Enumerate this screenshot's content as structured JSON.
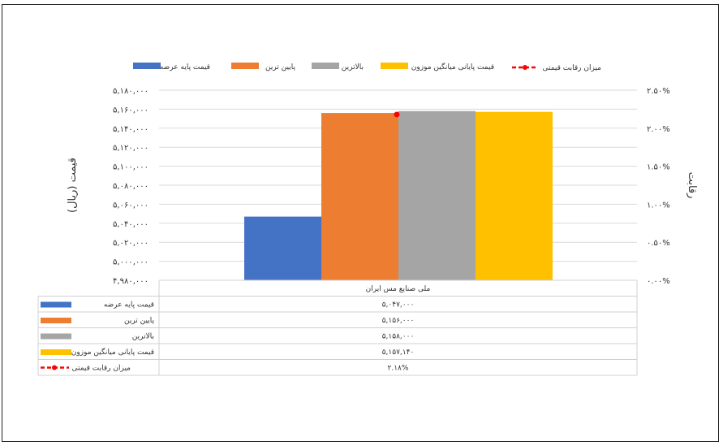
{
  "chart_data": {
    "type": "bar",
    "category": "ملی صنایع مس ایران",
    "series": [
      {
        "name": "قیمت پایه عرضه",
        "value": 5047000,
        "label": "۵,۰۴۷,۰۰۰",
        "color": "#4472C4"
      },
      {
        "name": "پایین ترین",
        "value": 5156000,
        "label": "۵,۱۵۶,۰۰۰",
        "color": "#ED7D31"
      },
      {
        "name": "بالاترین",
        "value": 5158000,
        "label": "۵,۱۵۸,۰۰۰",
        "color": "#A5A5A5"
      },
      {
        "name": "قیمت پایانی میانگین موزون",
        "value": 5157140,
        "label": "۵,۱۵۷,۱۴۰",
        "color": "#FFC000"
      }
    ],
    "line_series": {
      "name": "میزان رقابت قیمتی",
      "value": 2.18,
      "label": "۲.۱۸%",
      "color": "#FF0000"
    },
    "ylabel": "قیمت (ریال)",
    "y2label": "رقابت",
    "ylim": [
      4980000,
      5180000
    ],
    "y2lim": [
      0,
      2.5
    ],
    "yticks": [
      "۵,۱۸۰,۰۰۰",
      "۵,۱۶۰,۰۰۰",
      "۵,۱۴۰,۰۰۰",
      "۵,۱۲۰,۰۰۰",
      "۵,۱۰۰,۰۰۰",
      "۵,۰۸۰,۰۰۰",
      "۵,۰۶۰,۰۰۰",
      "۵,۰۴۰,۰۰۰",
      "۵,۰۲۰,۰۰۰",
      "۵,۰۰۰,۰۰۰",
      "۴,۹۸۰,۰۰۰"
    ],
    "y2ticks": [
      "۲.۵۰%",
      "۲.۰۰%",
      "۱.۵۰%",
      "۱.۰۰%",
      "۰.۵۰%",
      "۰.۰۰%"
    ],
    "grid": true,
    "legend_position": "top"
  }
}
